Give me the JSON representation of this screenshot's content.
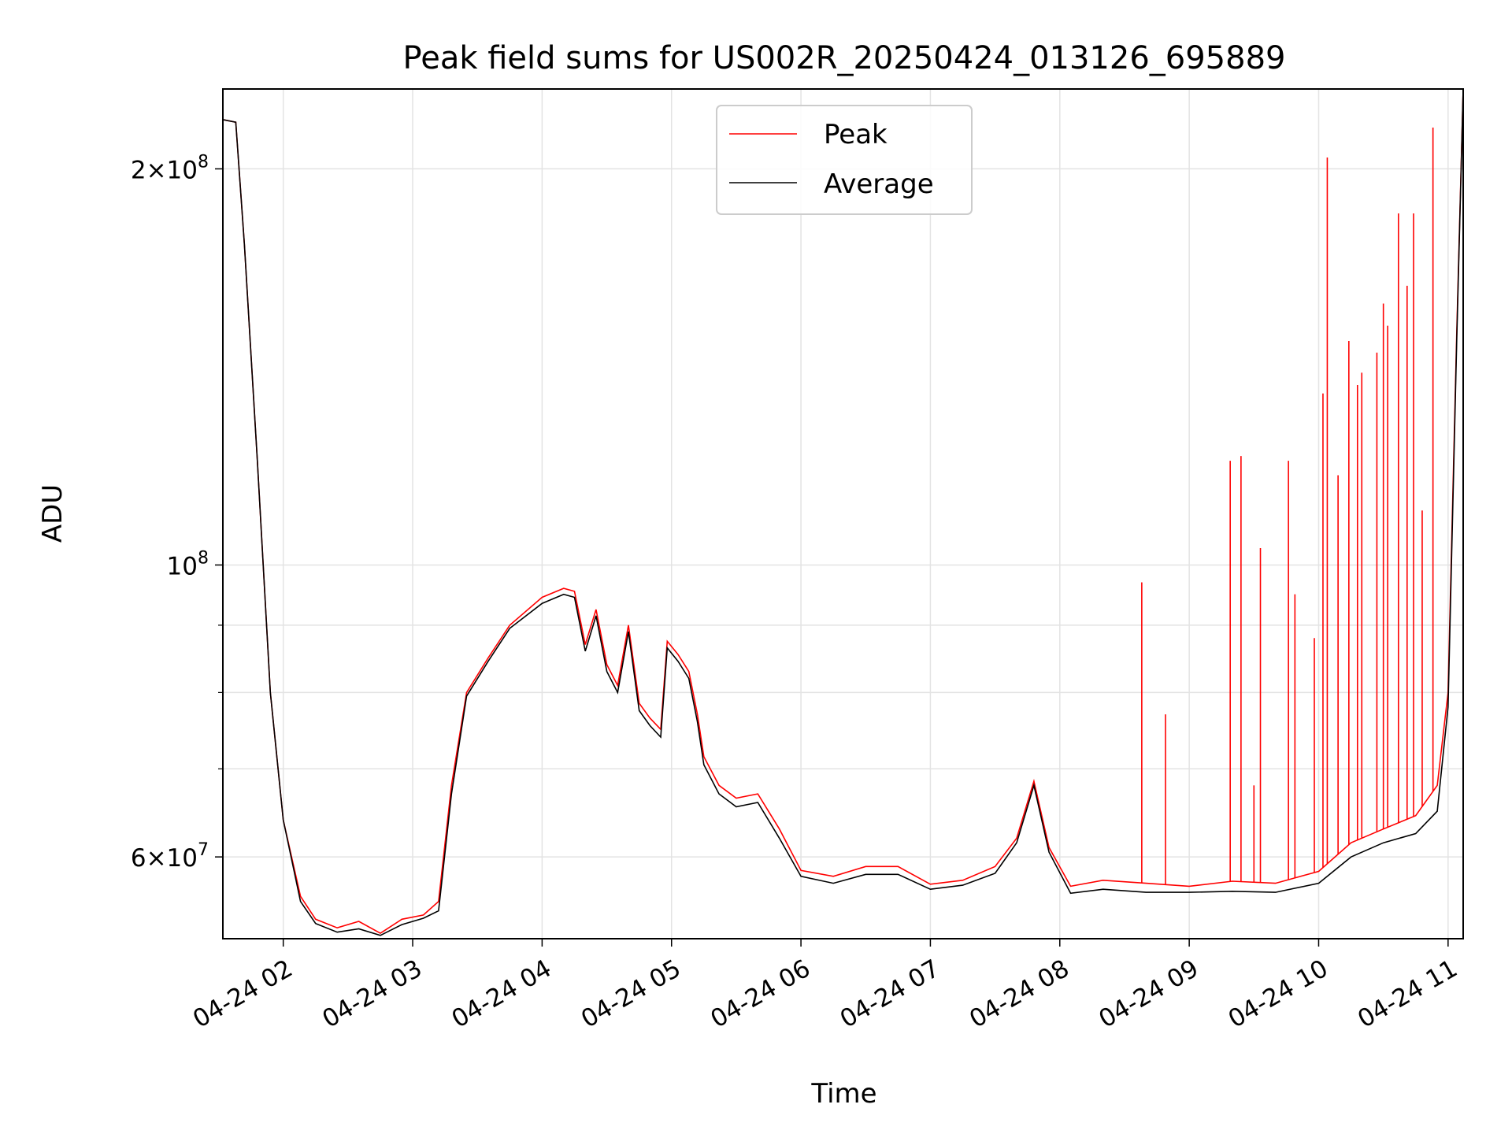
{
  "chart_data": {
    "type": "line",
    "title": "Peak field sums for US002R_20250424_013126_695889",
    "xlabel": "Time",
    "ylabel": "ADU",
    "yscale": "log",
    "ylim": [
      52000000,
      230000000
    ],
    "xlim": [
      "2025-04-24 01:32",
      "2025-04-24 11:07"
    ],
    "x_ticks": [
      "04-24 02",
      "04-24 03",
      "04-24 04",
      "04-24 05",
      "04-24 06",
      "04-24 07",
      "04-24 08",
      "04-24 09",
      "04-24 10",
      "04-24 11"
    ],
    "y_ticks": [
      {
        "value": 60000000,
        "mantissa": "6",
        "exp": "7",
        "has_mantissa": true
      },
      {
        "value": 100000000,
        "mantissa": "",
        "exp": "8",
        "has_mantissa": false
      },
      {
        "value": 200000000,
        "mantissa": "2",
        "exp": "8",
        "has_mantissa": true
      }
    ],
    "y_minor_ticks": [
      70000000,
      80000000,
      90000000
    ],
    "grid": true,
    "legend_position": "top-center",
    "series": [
      {
        "name": "Peak",
        "color": "#ff0000",
        "points": [
          [
            "2025-04-24 01:32",
            218000000
          ],
          [
            "2025-04-24 01:38",
            217000000
          ],
          [
            "2025-04-24 01:42",
            175000000
          ],
          [
            "2025-04-24 01:48",
            120000000
          ],
          [
            "2025-04-24 01:54",
            80000000
          ],
          [
            "2025-04-24 02:00",
            64000000
          ],
          [
            "2025-04-24 02:08",
            56000000
          ],
          [
            "2025-04-24 02:15",
            53800000
          ],
          [
            "2025-04-24 02:25",
            53000000
          ],
          [
            "2025-04-24 02:35",
            53600000
          ],
          [
            "2025-04-24 02:45",
            52500000
          ],
          [
            "2025-04-24 02:55",
            53800000
          ],
          [
            "2025-04-24 03:05",
            54200000
          ],
          [
            "2025-04-24 03:12",
            55500000
          ],
          [
            "2025-04-24 03:18",
            68000000
          ],
          [
            "2025-04-24 03:25",
            80000000
          ],
          [
            "2025-04-24 03:35",
            85000000
          ],
          [
            "2025-04-24 03:45",
            90000000
          ],
          [
            "2025-04-24 04:00",
            94500000
          ],
          [
            "2025-04-24 04:10",
            96000000
          ],
          [
            "2025-04-24 04:15",
            95500000
          ],
          [
            "2025-04-24 04:20",
            87000000
          ],
          [
            "2025-04-24 04:25",
            92500000
          ],
          [
            "2025-04-24 04:30",
            84000000
          ],
          [
            "2025-04-24 04:35",
            81000000
          ],
          [
            "2025-04-24 04:40",
            90000000
          ],
          [
            "2025-04-24 04:45",
            78500000
          ],
          [
            "2025-04-24 04:50",
            76500000
          ],
          [
            "2025-04-24 04:55",
            75000000
          ],
          [
            "2025-04-24 04:58",
            87500000
          ],
          [
            "2025-04-24 05:03",
            85500000
          ],
          [
            "2025-04-24 05:08",
            83000000
          ],
          [
            "2025-04-24 05:12",
            77000000
          ],
          [
            "2025-04-24 05:15",
            71500000
          ],
          [
            "2025-04-24 05:22",
            68000000
          ],
          [
            "2025-04-24 05:30",
            66500000
          ],
          [
            "2025-04-24 05:40",
            67000000
          ],
          [
            "2025-04-24 05:50",
            63000000
          ],
          [
            "2025-04-24 06:00",
            58600000
          ],
          [
            "2025-04-24 06:15",
            58000000
          ],
          [
            "2025-04-24 06:30",
            59000000
          ],
          [
            "2025-04-24 06:45",
            59000000
          ],
          [
            "2025-04-24 07:00",
            57200000
          ],
          [
            "2025-04-24 07:15",
            57600000
          ],
          [
            "2025-04-24 07:30",
            59000000
          ],
          [
            "2025-04-24 07:40",
            62000000
          ],
          [
            "2025-04-24 07:48",
            68500000
          ],
          [
            "2025-04-24 07:55",
            61000000
          ],
          [
            "2025-04-24 08:05",
            57000000
          ],
          [
            "2025-04-24 08:20",
            57600000
          ],
          [
            "2025-04-24 08:40",
            57300000
          ],
          [
            "2025-04-24 09:00",
            57000000
          ],
          [
            "2025-04-24 09:20",
            57500000
          ],
          [
            "2025-04-24 09:40",
            57300000
          ],
          [
            "2025-04-24 10:00",
            58500000
          ],
          [
            "2025-04-24 10:15",
            61500000
          ],
          [
            "2025-04-24 10:30",
            63000000
          ],
          [
            "2025-04-24 10:45",
            64500000
          ],
          [
            "2025-04-24 10:55",
            68000000
          ],
          [
            "2025-04-24 11:00",
            80000000
          ],
          [
            "2025-04-24 11:04",
            150000000
          ],
          [
            "2025-04-24 11:07",
            230000000
          ]
        ],
        "spikes": [
          [
            "2025-04-24 08:38",
            97000000
          ],
          [
            "2025-04-24 08:49",
            77000000
          ],
          [
            "2025-04-24 09:19",
            120000000
          ],
          [
            "2025-04-24 09:24",
            121000000
          ],
          [
            "2025-04-24 09:30",
            68000000
          ],
          [
            "2025-04-24 09:33",
            103000000
          ],
          [
            "2025-04-24 09:46",
            120000000
          ],
          [
            "2025-04-24 09:49",
            95000000
          ],
          [
            "2025-04-24 09:58",
            88000000
          ],
          [
            "2025-04-24 10:02",
            135000000
          ],
          [
            "2025-04-24 10:04",
            204000000
          ],
          [
            "2025-04-24 10:09",
            117000000
          ],
          [
            "2025-04-24 10:14",
            148000000
          ],
          [
            "2025-04-24 10:18",
            137000000
          ],
          [
            "2025-04-24 10:20",
            140000000
          ],
          [
            "2025-04-24 10:27",
            145000000
          ],
          [
            "2025-04-24 10:30",
            158000000
          ],
          [
            "2025-04-24 10:32",
            152000000
          ],
          [
            "2025-04-24 10:37",
            185000000
          ],
          [
            "2025-04-24 10:41",
            163000000
          ],
          [
            "2025-04-24 10:44",
            185000000
          ],
          [
            "2025-04-24 10:48",
            110000000
          ],
          [
            "2025-04-24 10:53",
            215000000
          ]
        ]
      },
      {
        "name": "Average",
        "color": "#000000",
        "points": [
          [
            "2025-04-24 01:32",
            218000000
          ],
          [
            "2025-04-24 01:38",
            217000000
          ],
          [
            "2025-04-24 01:42",
            175000000
          ],
          [
            "2025-04-24 01:48",
            120000000
          ],
          [
            "2025-04-24 01:54",
            80000000
          ],
          [
            "2025-04-24 02:00",
            64000000
          ],
          [
            "2025-04-24 02:08",
            55500000
          ],
          [
            "2025-04-24 02:15",
            53400000
          ],
          [
            "2025-04-24 02:25",
            52600000
          ],
          [
            "2025-04-24 02:35",
            52900000
          ],
          [
            "2025-04-24 02:45",
            52300000
          ],
          [
            "2025-04-24 02:55",
            53300000
          ],
          [
            "2025-04-24 03:05",
            53900000
          ],
          [
            "2025-04-24 03:12",
            54600000
          ],
          [
            "2025-04-24 03:18",
            67000000
          ],
          [
            "2025-04-24 03:25",
            79500000
          ],
          [
            "2025-04-24 03:35",
            84500000
          ],
          [
            "2025-04-24 03:45",
            89500000
          ],
          [
            "2025-04-24 04:00",
            93500000
          ],
          [
            "2025-04-24 04:10",
            95000000
          ],
          [
            "2025-04-24 04:15",
            94500000
          ],
          [
            "2025-04-24 04:20",
            86000000
          ],
          [
            "2025-04-24 04:25",
            91500000
          ],
          [
            "2025-04-24 04:30",
            83000000
          ],
          [
            "2025-04-24 04:35",
            80000000
          ],
          [
            "2025-04-24 04:40",
            89000000
          ],
          [
            "2025-04-24 04:45",
            77500000
          ],
          [
            "2025-04-24 04:50",
            75500000
          ],
          [
            "2025-04-24 04:55",
            74000000
          ],
          [
            "2025-04-24 04:58",
            86500000
          ],
          [
            "2025-04-24 05:03",
            84500000
          ],
          [
            "2025-04-24 05:08",
            82000000
          ],
          [
            "2025-04-24 05:12",
            76000000
          ],
          [
            "2025-04-24 05:15",
            70500000
          ],
          [
            "2025-04-24 05:22",
            67000000
          ],
          [
            "2025-04-24 05:30",
            65500000
          ],
          [
            "2025-04-24 05:40",
            66000000
          ],
          [
            "2025-04-24 05:50",
            62000000
          ],
          [
            "2025-04-24 06:00",
            58000000
          ],
          [
            "2025-04-24 06:15",
            57300000
          ],
          [
            "2025-04-24 06:30",
            58200000
          ],
          [
            "2025-04-24 06:45",
            58200000
          ],
          [
            "2025-04-24 07:00",
            56700000
          ],
          [
            "2025-04-24 07:15",
            57100000
          ],
          [
            "2025-04-24 07:30",
            58300000
          ],
          [
            "2025-04-24 07:40",
            61500000
          ],
          [
            "2025-04-24 07:48",
            68000000
          ],
          [
            "2025-04-24 07:55",
            60500000
          ],
          [
            "2025-04-24 08:05",
            56300000
          ],
          [
            "2025-04-24 08:20",
            56700000
          ],
          [
            "2025-04-24 08:40",
            56400000
          ],
          [
            "2025-04-24 09:00",
            56400000
          ],
          [
            "2025-04-24 09:20",
            56500000
          ],
          [
            "2025-04-24 09:40",
            56400000
          ],
          [
            "2025-04-24 10:00",
            57300000
          ],
          [
            "2025-04-24 10:15",
            60000000
          ],
          [
            "2025-04-24 10:30",
            61500000
          ],
          [
            "2025-04-24 10:45",
            62500000
          ],
          [
            "2025-04-24 10:55",
            65000000
          ],
          [
            "2025-04-24 11:00",
            78000000
          ],
          [
            "2025-04-24 11:04",
            148000000
          ],
          [
            "2025-04-24 11:07",
            230000000
          ]
        ]
      }
    ]
  }
}
